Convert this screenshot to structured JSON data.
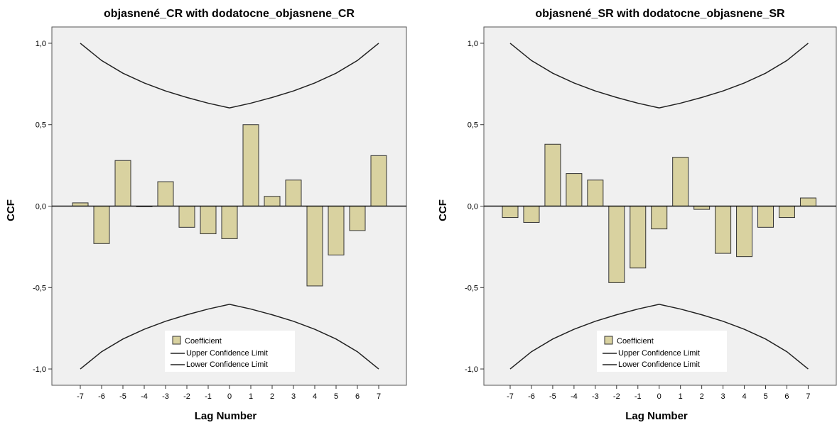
{
  "colors": {
    "plot_background": "#f0f0f0",
    "bar_fill": "#d9d2a0",
    "bar_stroke": "#333333",
    "line": "#222222"
  },
  "chart_data": [
    {
      "type": "bar",
      "title": "objasnené_CR with dodatocne_objasnene_CR",
      "xlabel": "Lag Number",
      "ylabel": "CCF",
      "ylim": [
        -1.1,
        1.1
      ],
      "yticks": [
        1.0,
        0.5,
        0.0,
        -0.5,
        -1.0
      ],
      "ytick_labels": [
        "1,0",
        "0,5",
        "0,0",
        "-0,5",
        "-1,0"
      ],
      "categories": [
        "-7",
        "-6",
        "-5",
        "-4",
        "-3",
        "-2",
        "-1",
        "0",
        "1",
        "2",
        "3",
        "4",
        "5",
        "6",
        "7"
      ],
      "x": [
        -7,
        -6,
        -5,
        -4,
        -3,
        -2,
        -1,
        0,
        1,
        2,
        3,
        4,
        5,
        6,
        7
      ],
      "series": [
        {
          "name": "Coefficient",
          "values": [
            0.02,
            -0.23,
            0.28,
            0.0,
            0.15,
            -0.13,
            -0.17,
            -0.2,
            0.5,
            0.06,
            0.16,
            -0.49,
            -0.3,
            -0.15,
            0.31
          ]
        },
        {
          "name": "Upper Confidence Limit",
          "values": [
            1.0,
            0.894,
            0.816,
            0.756,
            0.707,
            0.667,
            0.632,
            0.603,
            0.632,
            0.667,
            0.707,
            0.756,
            0.816,
            0.894,
            1.0
          ]
        },
        {
          "name": "Lower Confidence Limit",
          "values": [
            -1.0,
            -0.894,
            -0.816,
            -0.756,
            -0.707,
            -0.667,
            -0.632,
            -0.603,
            -0.632,
            -0.667,
            -0.707,
            -0.756,
            -0.816,
            -0.894,
            -1.0
          ]
        }
      ],
      "legend": {
        "position": "bottom-center",
        "entries": [
          "Coefficient",
          "Upper Confidence Limit",
          "Lower Confidence Limit"
        ]
      }
    },
    {
      "type": "bar",
      "title": "objasnené_SR with dodatocne_objasnene_SR",
      "xlabel": "Lag Number",
      "ylabel": "CCF",
      "ylim": [
        -1.1,
        1.1
      ],
      "yticks": [
        1.0,
        0.5,
        0.0,
        -0.5,
        -1.0
      ],
      "ytick_labels": [
        "1,0",
        "0,5",
        "0,0",
        "-0,5",
        "-1,0"
      ],
      "categories": [
        "-7",
        "-6",
        "-5",
        "-4",
        "-3",
        "-2",
        "-1",
        "0",
        "1",
        "2",
        "3",
        "4",
        "5",
        "6",
        "7"
      ],
      "x": [
        -7,
        -6,
        -5,
        -4,
        -3,
        -2,
        -1,
        0,
        1,
        2,
        3,
        4,
        5,
        6,
        7
      ],
      "series": [
        {
          "name": "Coefficient",
          "values": [
            -0.07,
            -0.1,
            0.38,
            0.2,
            0.16,
            -0.47,
            -0.38,
            -0.14,
            0.3,
            -0.02,
            -0.29,
            -0.31,
            -0.13,
            -0.07,
            0.05
          ]
        },
        {
          "name": "Upper Confidence Limit",
          "values": [
            1.0,
            0.894,
            0.816,
            0.756,
            0.707,
            0.667,
            0.632,
            0.603,
            0.632,
            0.667,
            0.707,
            0.756,
            0.816,
            0.894,
            1.0
          ]
        },
        {
          "name": "Lower Confidence Limit",
          "values": [
            -1.0,
            -0.894,
            -0.816,
            -0.756,
            -0.707,
            -0.667,
            -0.632,
            -0.603,
            -0.632,
            -0.667,
            -0.707,
            -0.756,
            -0.816,
            -0.894,
            -1.0
          ]
        }
      ],
      "legend": {
        "position": "bottom-center",
        "entries": [
          "Coefficient",
          "Upper Confidence Limit",
          "Lower Confidence Limit"
        ]
      }
    }
  ]
}
